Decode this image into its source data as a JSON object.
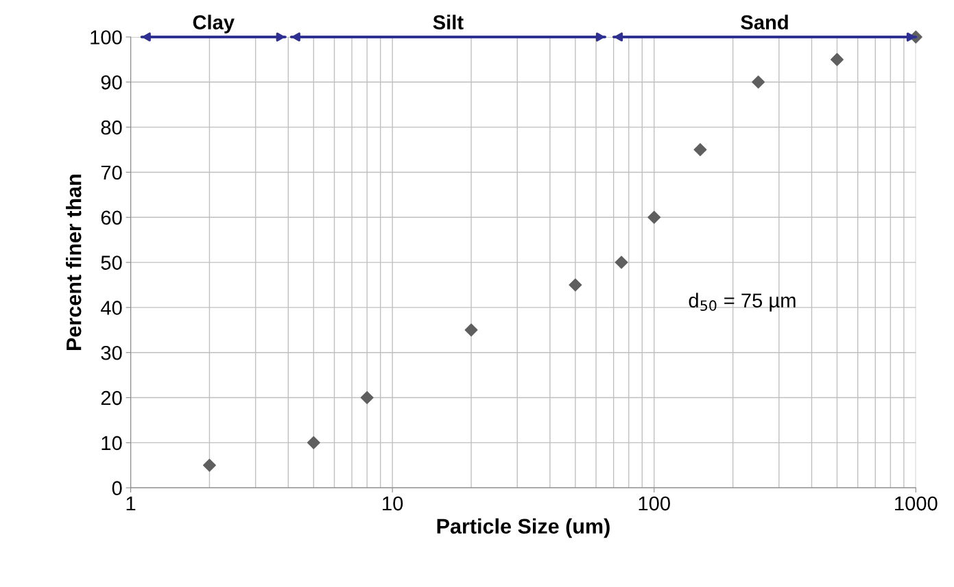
{
  "chart_data": {
    "type": "scatter",
    "xlabel": "Particle Size (um)",
    "ylabel": "Percent finer than",
    "log": "x",
    "x": [
      2,
      5,
      8,
      20,
      50,
      75,
      100,
      150,
      250,
      500,
      1000
    ],
    "series": [
      {
        "color": "#5f5f5f",
        "marker": "diamond",
        "values": [
          5,
          10,
          20,
          35,
          45,
          50,
          60,
          75,
          90,
          95,
          100
        ]
      },
      {
        "type": "line",
        "marker": "none",
        "name": "Clay",
        "color": "#2e3192",
        "x": [
          1.1,
          3.9
        ],
        "values": [
          100,
          100
        ]
      },
      {
        "type": "line",
        "marker": "none",
        "name": "Silt",
        "color": "#2e3192",
        "x": [
          4.1,
          65
        ],
        "values": [
          100,
          100
        ]
      },
      {
        "type": "line",
        "marker": "none",
        "name": "Sand",
        "color": "#2e3192",
        "x": [
          70,
          1000
        ],
        "values": [
          100,
          100
        ]
      }
    ],
    "grid": true,
    "xlim": [
      1,
      1000
    ],
    "xticks": [
      1,
      10,
      100,
      1000
    ],
    "ylim": [
      0,
      100
    ],
    "yticks": [
      0,
      10,
      20,
      30,
      40,
      50,
      60,
      70,
      80,
      90,
      100
    ],
    "annotations": [
      "d$_{50}$ = 75 µm"
    ]
  }
}
